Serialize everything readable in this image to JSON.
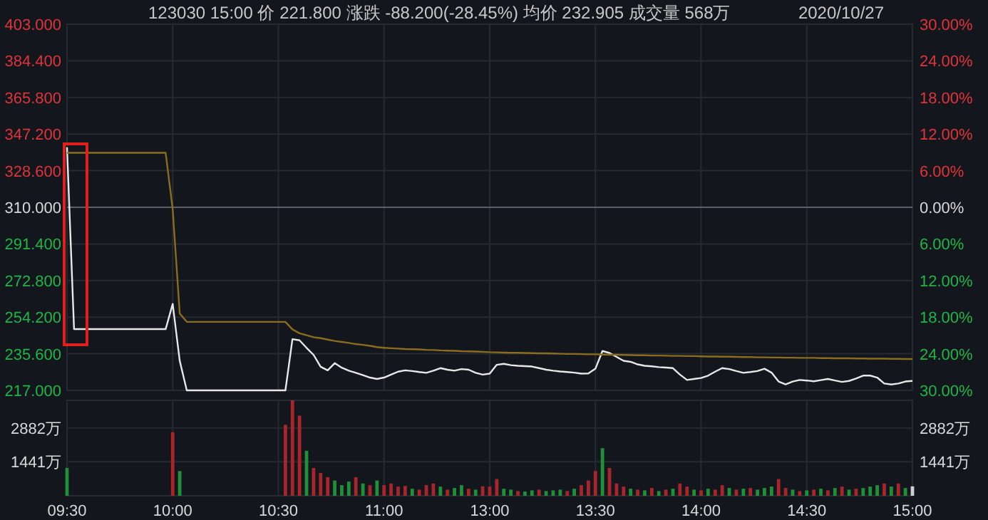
{
  "chart_data": [
    {
      "type": "line",
      "title": "123030 15:00 价 221.800 涨跌 -88.200(-28.45%) 均价 232.905 成交量 568万",
      "annotations": [
        "2020/10/27"
      ],
      "categories": [
        null,
        null,
        null,
        null,
        null,
        null,
        null,
        null,
        null,
        null,
        null,
        null,
        null,
        null,
        null,
        null,
        null,
        null,
        null,
        null,
        null,
        null,
        null,
        null,
        null,
        null,
        null,
        null,
        null,
        null,
        null,
        null,
        null,
        null,
        null,
        null,
        null,
        null,
        null,
        null,
        null,
        null,
        null,
        null,
        null,
        null,
        null,
        null,
        null,
        null,
        null,
        null,
        null,
        null,
        null,
        null,
        null,
        null,
        null,
        null,
        null,
        null,
        null,
        null,
        null,
        null,
        null,
        null,
        null,
        null,
        null,
        null,
        null,
        null,
        null,
        null,
        null,
        null,
        null,
        null,
        null,
        null,
        null,
        null,
        null,
        null,
        null,
        null,
        null,
        null,
        null,
        null,
        null,
        null,
        null,
        null,
        null,
        null,
        null,
        null,
        null,
        null,
        null,
        null,
        null,
        null,
        null,
        null,
        null,
        null,
        null,
        null,
        null,
        null,
        null,
        null,
        null,
        null,
        null,
        null,
        null
      ],
      "series": [
        {
          "color": "#e8e8e8",
          "values": [
            340.5,
            248.1,
            248.1,
            248.1,
            248.1,
            248.1,
            248.1,
            248.1,
            248.1,
            248.1,
            248.1,
            248.1,
            248.1,
            248.1,
            248.1,
            260.9,
            232,
            217,
            217,
            217,
            217,
            217,
            217,
            217,
            217,
            217,
            217,
            217,
            217,
            217,
            217,
            217,
            243,
            242.4,
            238.6,
            235,
            229,
            227.2,
            230.8,
            228.5,
            227,
            225.9,
            224.7,
            223.5,
            222.8,
            223.5,
            225,
            226.5,
            227.2,
            226.8,
            226.3,
            225.9,
            227,
            228.3,
            227.5,
            227,
            227.8,
            227.5,
            225.9,
            225,
            225.5,
            230,
            230.5,
            229.8,
            229.5,
            229.3,
            229.1,
            228.3,
            227.5,
            227,
            226.6,
            226.3,
            226,
            225.5,
            225.6,
            228,
            237,
            236,
            234,
            232,
            231.5,
            230.2,
            229.5,
            229.2,
            228.8,
            228.6,
            228.3,
            225,
            222.3,
            222.8,
            223.3,
            224.5,
            226.5,
            228.3,
            227.8,
            226.8,
            225.9,
            226.3,
            226.8,
            228,
            226,
            221.5,
            220,
            221.5,
            222.3,
            222,
            221.6,
            222.2,
            222.8,
            222,
            221.3,
            221.8,
            223,
            224.5,
            224.5,
            223.5,
            220.5,
            220,
            220.5,
            221.5,
            221.8
          ]
        },
        {
          "color": "#8a6d1e",
          "values": [
            337.7,
            337.7,
            337.7,
            337.7,
            337.7,
            337.7,
            337.7,
            337.7,
            337.7,
            337.7,
            337.7,
            337.7,
            337.7,
            337.7,
            337.7,
            309,
            256,
            251.8,
            251.8,
            251.8,
            251.8,
            251.8,
            251.8,
            251.8,
            251.8,
            251.8,
            251.8,
            251.8,
            251.8,
            251.8,
            251.8,
            251.8,
            248,
            246,
            245,
            244,
            243.5,
            242.8,
            242.1,
            241.6,
            241.1,
            240.5,
            240.1,
            239.6,
            239,
            238.6,
            238.4,
            238.2,
            238,
            237.9,
            237.8,
            237.6,
            237.5,
            237.3,
            237.2,
            237.1,
            236.9,
            236.8,
            236.7,
            236.6,
            236.4,
            236.3,
            236.2,
            236.1,
            236.1,
            236,
            235.9,
            235.8,
            235.8,
            235.7,
            235.6,
            235.5,
            235.5,
            235.4,
            235.3,
            235.3,
            235.2,
            235.1,
            235.1,
            235,
            234.9,
            234.8,
            234.8,
            234.7,
            234.7,
            234.6,
            234.5,
            234.5,
            234.4,
            234.4,
            234.3,
            234.2,
            234.2,
            234.1,
            234.1,
            234,
            233.9,
            233.9,
            233.8,
            233.8,
            233.7,
            233.7,
            233.6,
            233.6,
            233.5,
            233.5,
            233.5,
            233.4,
            233.4,
            233.3,
            233.3,
            233.3,
            233.2,
            233.2,
            233.1,
            233.1,
            233.1,
            233,
            233,
            232.9,
            232.9
          ]
        }
      ],
      "ylim": [
        217,
        403
      ],
      "yticks": [
        {
          "value": 217,
          "label": "217.000"
        },
        {
          "value": 235.6,
          "label": "235.600"
        },
        {
          "value": 254.2,
          "label": "254.200"
        },
        {
          "value": 272.8,
          "label": "272.800"
        },
        {
          "value": 291.4,
          "label": "291.400"
        },
        {
          "value": 310,
          "label": "310.000"
        },
        {
          "value": 328.6,
          "label": "328.600"
        },
        {
          "value": 347.2,
          "label": "347.200"
        },
        {
          "value": 365.8,
          "label": "365.800"
        },
        {
          "value": 384.4,
          "label": "384.400"
        },
        {
          "value": 403,
          "label": "403.000"
        }
      ],
      "y2lim": [
        -30,
        30
      ],
      "y2ticks": [
        {
          "value": -30,
          "label": "30.00%"
        },
        {
          "value": -24,
          "label": "24.00%"
        },
        {
          "value": -18,
          "label": "18.00%"
        },
        {
          "value": -12,
          "label": "12.00%"
        },
        {
          "value": -6,
          "label": "6.00%"
        },
        {
          "value": 0,
          "label": "0.00%"
        },
        {
          "value": 6,
          "label": "6.00%"
        },
        {
          "value": 12,
          "label": "12.00%"
        },
        {
          "value": 18,
          "label": "18.00%"
        },
        {
          "value": 24,
          "label": "24.00%"
        },
        {
          "value": 30,
          "label": "30.00%"
        }
      ],
      "ref_lines": [
        {
          "axis": "y",
          "value": 310,
          "color": "#5c6068"
        }
      ],
      "grid": true,
      "tick_labels": "y"
    },
    {
      "type": "bar",
      "categories": [
        "09:30",
        null,
        null,
        null,
        null,
        null,
        null,
        null,
        null,
        null,
        null,
        null,
        null,
        null,
        null,
        "10:00",
        null,
        null,
        null,
        null,
        null,
        null,
        null,
        null,
        null,
        null,
        null,
        null,
        null,
        null,
        "10:30",
        null,
        null,
        null,
        null,
        null,
        null,
        null,
        null,
        null,
        null,
        null,
        null,
        null,
        null,
        "11:00",
        null,
        null,
        null,
        null,
        null,
        null,
        null,
        null,
        null,
        null,
        null,
        null,
        null,
        null,
        "13:00",
        null,
        null,
        null,
        null,
        null,
        null,
        null,
        null,
        null,
        null,
        null,
        null,
        null,
        null,
        "13:30",
        null,
        null,
        null,
        null,
        null,
        null,
        null,
        null,
        null,
        null,
        null,
        null,
        null,
        null,
        "14:00",
        null,
        null,
        null,
        null,
        null,
        null,
        null,
        null,
        null,
        null,
        null,
        null,
        null,
        null,
        "14:30",
        null,
        null,
        null,
        null,
        null,
        null,
        null,
        null,
        null,
        null,
        null,
        null,
        null,
        null,
        "15:00"
      ],
      "values": [
        1180,
        null,
        null,
        null,
        null,
        null,
        null,
        null,
        null,
        null,
        null,
        null,
        null,
        null,
        null,
        2700,
        1050,
        null,
        null,
        null,
        null,
        null,
        null,
        null,
        null,
        null,
        null,
        null,
        null,
        null,
        null,
        3010,
        4050,
        3400,
        1910,
        1180,
        970,
        790,
        650,
        450,
        600,
        790,
        520,
        450,
        650,
        450,
        520,
        390,
        420,
        300,
        260,
        450,
        520,
        390,
        260,
        330,
        450,
        300,
        260,
        400,
        390,
        710,
        300,
        260,
        200,
        180,
        230,
        260,
        200,
        230,
        260,
        200,
        300,
        450,
        650,
        1050,
        2020,
        1180,
        520,
        390,
        300,
        260,
        230,
        330,
        200,
        260,
        300,
        520,
        390,
        260,
        230,
        300,
        260,
        450,
        330,
        260,
        300,
        330,
        260,
        330,
        390,
        710,
        330,
        260,
        200,
        230,
        260,
        300,
        230,
        330,
        390,
        260,
        300,
        330,
        390,
        450,
        520,
        390,
        520,
        330,
        400
      ],
      "colors": [
        "#1f8f38",
        null,
        null,
        null,
        null,
        null,
        null,
        null,
        null,
        null,
        null,
        null,
        null,
        null,
        null,
        "#a8262b",
        "#1f8f38",
        null,
        null,
        null,
        null,
        null,
        null,
        null,
        null,
        null,
        null,
        null,
        null,
        null,
        null,
        "#a8262b",
        "#a8262b",
        "#a8262b",
        "#1f8f38",
        "#a8262b",
        "#a8262b",
        "#a8262b",
        "#1f8f38",
        "#1f8f38",
        "#1f8f38",
        "#a8262b",
        "#1f8f38",
        "#a8262b",
        "#1f8f38",
        "#a8262b",
        "#a8262b",
        "#a8262b",
        "#a8262b",
        "#1f8f38",
        "#a8262b",
        "#a8262b",
        "#a8262b",
        "#1f8f38",
        "#a8262b",
        "#1f8f38",
        "#1f8f38",
        "#a8262b",
        "#1f8f38",
        "#a8262b",
        "#a8262b",
        "#a8262b",
        "#1f8f38",
        "#1f8f38",
        "#a8262b",
        "#1f8f38",
        "#1f8f38",
        "#a8262b",
        "#1f8f38",
        "#1f8f38",
        "#1f8f38",
        "#a8262b",
        "#1f8f38",
        "#a8262b",
        "#a8262b",
        "#a8262b",
        "#1f8f38",
        "#a8262b",
        "#a8262b",
        "#a8262b",
        "#1f8f38",
        "#a8262b",
        "#1f8f38",
        "#a8262b",
        "#1f8f38",
        "#a8262b",
        "#1f8f38",
        "#a8262b",
        "#a8262b",
        "#1f8f38",
        "#a8262b",
        "#1f8f38",
        "#a8262b",
        "#a8262b",
        "#1f8f38",
        "#a8262b",
        "#1f8f38",
        "#a8262b",
        "#1f8f38",
        "#1f8f38",
        "#1f8f38",
        "#a8262b",
        "#a8262b",
        "#1f8f38",
        "#a8262b",
        "#1f8f38",
        "#a8262b",
        "#1f8f38",
        "#a8262b",
        "#1f8f38",
        "#a8262b",
        "#1f8f38",
        "#a8262b",
        "#1f8f38",
        "#1f8f38",
        "#1f8f38",
        "#a8262b",
        "#1f8f38",
        "#a8262b",
        "#1f8f38",
        "#d0d0d0"
      ],
      "ylim": [
        0,
        4050
      ],
      "yticks": [
        {
          "value": 1441,
          "label": "1441万"
        },
        {
          "value": 2882,
          "label": "2882万"
        }
      ],
      "y2lim": [
        0,
        4050
      ],
      "y2ticks": [
        {
          "value": 1441,
          "label": "1441万"
        },
        {
          "value": 2882,
          "label": "2882万"
        }
      ],
      "grid": true
    }
  ]
}
